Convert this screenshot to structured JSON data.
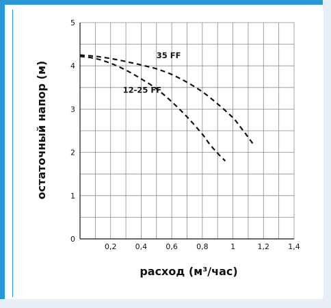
{
  "chart_data": {
    "type": "line",
    "xlabel": "расход (м³/час)",
    "ylabel": "остаточный напор (м)",
    "xlim": [
      0,
      1.4
    ],
    "ylim": [
      0,
      5
    ],
    "x_ticks": [
      {
        "value": 0.2,
        "label": "0,2"
      },
      {
        "value": 0.4,
        "label": "0,4"
      },
      {
        "value": 0.6,
        "label": "0,6"
      },
      {
        "value": 0.8,
        "label": "0,8"
      },
      {
        "value": 1.0,
        "label": "1"
      },
      {
        "value": 1.2,
        "label": "1,2"
      },
      {
        "value": 1.4,
        "label": "1,4"
      }
    ],
    "y_ticks": [
      {
        "value": 0,
        "label": "0"
      },
      {
        "value": 1,
        "label": "1"
      },
      {
        "value": 2,
        "label": "2"
      },
      {
        "value": 3,
        "label": "3"
      },
      {
        "value": 4,
        "label": "4"
      },
      {
        "value": 5,
        "label": "5"
      }
    ],
    "grid": true,
    "line_style": "dashed",
    "series": [
      {
        "name": "35 FF",
        "x": [
          0.0,
          0.1,
          0.2,
          0.3,
          0.4,
          0.5,
          0.6,
          0.7,
          0.8,
          0.9,
          1.0,
          1.05,
          1.1,
          1.14
        ],
        "y": [
          4.25,
          4.22,
          4.17,
          4.1,
          4.02,
          3.93,
          3.8,
          3.62,
          3.4,
          3.12,
          2.8,
          2.58,
          2.35,
          2.15
        ],
        "label_at": {
          "x": 0.5,
          "y": 4.18
        }
      },
      {
        "name": "12-25 FF",
        "x": [
          0.0,
          0.1,
          0.2,
          0.3,
          0.4,
          0.5,
          0.6,
          0.7,
          0.8,
          0.85,
          0.9,
          0.95
        ],
        "y": [
          4.22,
          4.17,
          4.06,
          3.9,
          3.7,
          3.47,
          3.17,
          2.82,
          2.42,
          2.18,
          1.98,
          1.8
        ],
        "label_at": {
          "x": 0.28,
          "y": 3.38
        }
      }
    ]
  }
}
